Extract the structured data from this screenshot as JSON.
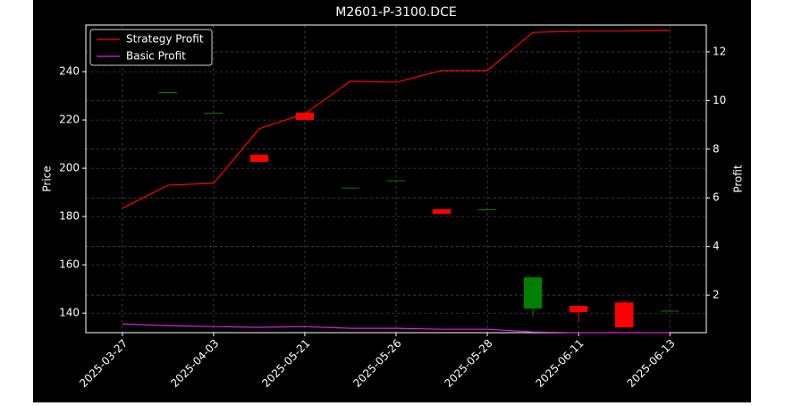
{
  "chart_data": {
    "type": "candlestick",
    "title": "M2601-P-3100.DCE",
    "ylabel": "Price",
    "y2label": "Profit",
    "categories": [
      "2025-03-27",
      null,
      "2025-04-03",
      null,
      "2025-05-21",
      null,
      "2025-05-26",
      null,
      "2025-05-28",
      null,
      "2025-06-11",
      null,
      "2025-06-13"
    ],
    "xlim": [
      -0.8,
      12.8
    ],
    "ylim": [
      131.9,
      259.3
    ],
    "yticks": [
      140,
      160,
      180,
      200,
      220,
      240
    ],
    "y2lim": [
      0.46,
      13.1
    ],
    "y2ticks": [
      2,
      4,
      6,
      8,
      10,
      12
    ],
    "grid": true,
    "legend": "upper left",
    "up_color": "#008000",
    "down_color": "#ff0000",
    "candles": {
      "open": [
        null,
        231.5,
        223,
        205.6,
        223,
        192,
        195,
        183,
        183,
        141.9,
        143,
        144.4,
        141
      ],
      "high": [
        null,
        231.5,
        223,
        205.6,
        223,
        192,
        195,
        183,
        183,
        154.8,
        143,
        145,
        141
      ],
      "low": [
        null,
        231.5,
        223,
        202.6,
        220,
        192,
        195,
        181.1,
        183,
        138.5,
        136.3,
        134.1,
        141
      ],
      "close": [
        null,
        231.5,
        223,
        202.6,
        220,
        192,
        195,
        181.1,
        183,
        154.8,
        140.4,
        134.1,
        141
      ]
    },
    "series": [
      {
        "name": "Strategy Profit",
        "color": "#ff0000",
        "axis": "y2",
        "values": [
          5.57,
          6.52,
          6.6,
          8.84,
          9.46,
          10.79,
          10.75,
          11.23,
          11.23,
          12.8,
          12.85,
          12.85,
          12.88
        ]
      },
      {
        "name": "Basic Profit",
        "color": "#e020e0",
        "axis": "y2",
        "values": [
          0.82,
          0.75,
          0.71,
          0.68,
          0.71,
          0.64,
          0.64,
          0.6,
          0.6,
          0.49,
          0.46,
          0.46,
          0.46
        ]
      }
    ]
  }
}
